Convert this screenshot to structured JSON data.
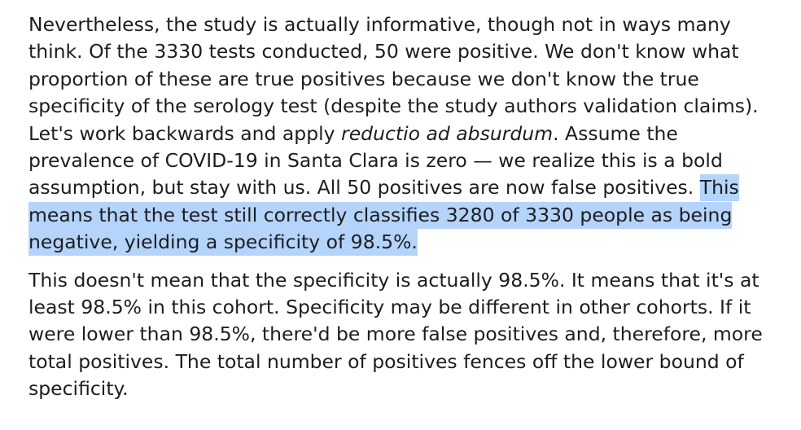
{
  "paragraph_1": {
    "part_1": "Nevertheless, the study is actually informative, though not in ways many think. Of the 3330 tests conducted, 50 were positive. We don't know what proportion of these are true positives because we don't know the true specificity of the serology test (despite the study authors validation claims). Let's work backwards and apply ",
    "emphasis": "reductio ad absurdum",
    "part_2": ". Assume the prevalence of COVID-19 in Santa Clara is zero — we realize this is a bold assumption, but stay with us. All 50 positives are now false positives. ",
    "highlighted": "This means that the test still correctly classifies 3280 of 3330 people as being negative, yielding a specificity of 98.5%."
  },
  "paragraph_2": {
    "text": "This doesn't mean that the specificity is actually 98.5%. It means that it's at least 98.5% in this cohort. Specificity may be different in other cohorts. If it were lower than 98.5%, there'd be more false positives and, therefore, more total positives. The total number of positives fences off the lower bound of specificity."
  },
  "colors": {
    "text": "#1d1d1f",
    "selection_highlight": "#b4d4fb",
    "background": "#ffffff"
  }
}
